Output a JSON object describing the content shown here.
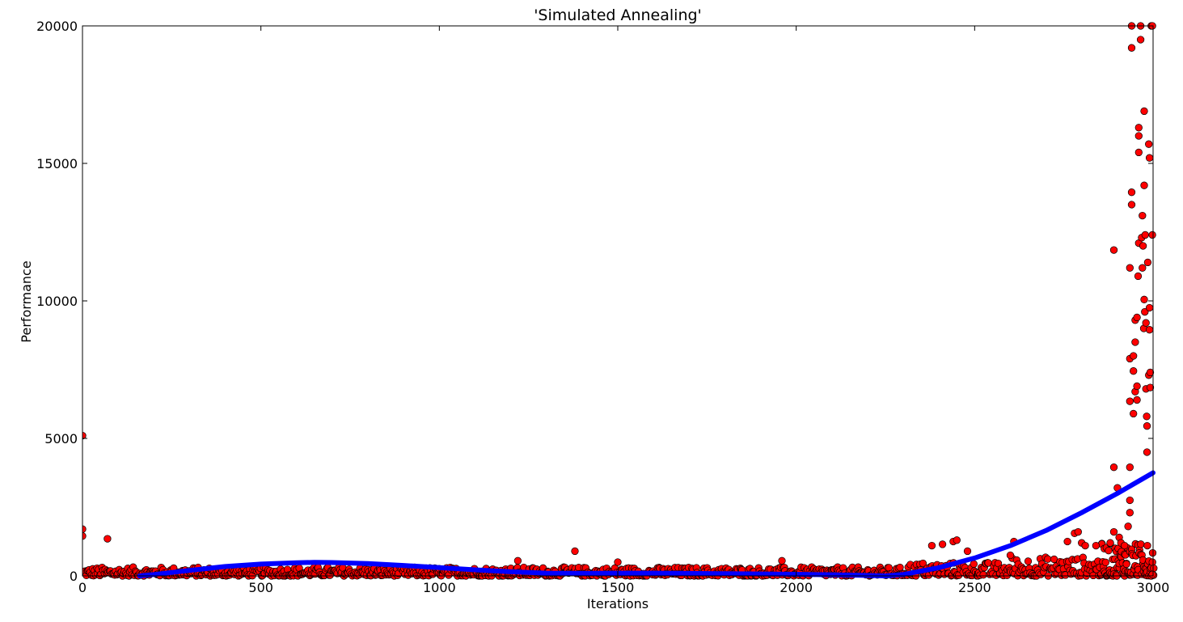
{
  "chart_data": {
    "type": "scatter",
    "title": "'Simulated Annealing'",
    "xlabel": "Iterations",
    "ylabel": "Performance",
    "xlim": [
      0,
      3000
    ],
    "ylim": [
      0,
      20000
    ],
    "xticks": [
      0,
      500,
      1000,
      1500,
      2000,
      2500,
      3000
    ],
    "yticks": [
      0,
      5000,
      10000,
      15000,
      20000
    ],
    "grid": false,
    "colors": {
      "points": "#ff0000",
      "point_edge": "#000000",
      "fit_line": "#0000ff"
    },
    "series": [
      {
        "kind": "scatter",
        "outliers": [
          [
            0,
            5100
          ],
          [
            0,
            1700
          ],
          [
            0,
            1450
          ],
          [
            70,
            1350
          ],
          [
            1380,
            900
          ],
          [
            1220,
            550
          ],
          [
            1500,
            500
          ],
          [
            1960,
            550
          ],
          [
            2380,
            1100
          ],
          [
            2410,
            1150
          ],
          [
            2440,
            1250
          ],
          [
            2450,
            1300
          ],
          [
            2480,
            900
          ],
          [
            2600,
            750
          ],
          [
            2610,
            1250
          ],
          [
            2760,
            1250
          ],
          [
            2780,
            1550
          ],
          [
            2790,
            1600
          ],
          [
            2800,
            1200
          ],
          [
            2810,
            1100
          ],
          [
            2840,
            1100
          ],
          [
            2880,
            1200
          ],
          [
            2890,
            1600
          ],
          [
            2890,
            3950
          ],
          [
            2890,
            11850
          ],
          [
            2900,
            3200
          ],
          [
            2905,
            1400
          ],
          [
            2910,
            1200
          ],
          [
            2920,
            1100
          ],
          [
            2930,
            1800
          ],
          [
            2935,
            2300
          ],
          [
            2935,
            2750
          ],
          [
            2935,
            3950
          ],
          [
            2935,
            6350
          ],
          [
            2935,
            7900
          ],
          [
            2935,
            11200
          ],
          [
            2940,
            13500
          ],
          [
            2940,
            13950
          ],
          [
            2940,
            19200
          ],
          [
            2940,
            20000
          ],
          [
            2945,
            8000
          ],
          [
            2945,
            7450
          ],
          [
            2945,
            5900
          ],
          [
            2950,
            8500
          ],
          [
            2950,
            9300
          ],
          [
            2950,
            6700
          ],
          [
            2955,
            9400
          ],
          [
            2955,
            6400
          ],
          [
            2955,
            6900
          ],
          [
            2958,
            10900
          ],
          [
            2960,
            12100
          ],
          [
            2960,
            16000
          ],
          [
            2960,
            16300
          ],
          [
            2960,
            15400
          ],
          [
            2965,
            19500
          ],
          [
            2965,
            20000
          ],
          [
            2968,
            12300
          ],
          [
            2970,
            13100
          ],
          [
            2970,
            11200
          ],
          [
            2972,
            12000
          ],
          [
            2974,
            9000
          ],
          [
            2975,
            16900
          ],
          [
            2975,
            14200
          ],
          [
            2975,
            10050
          ],
          [
            2977,
            9600
          ],
          [
            2978,
            12400
          ],
          [
            2980,
            9200
          ],
          [
            2980,
            6800
          ],
          [
            2982,
            5800
          ],
          [
            2983,
            5450
          ],
          [
            2983,
            4500
          ],
          [
            2984,
            1100
          ],
          [
            2985,
            11400
          ],
          [
            2988,
            15700
          ],
          [
            2988,
            7300
          ],
          [
            2990,
            15200
          ],
          [
            2990,
            9750
          ],
          [
            2990,
            8950
          ],
          [
            2992,
            7400
          ],
          [
            2992,
            6850
          ],
          [
            2995,
            20000
          ],
          [
            2998,
            20000
          ],
          [
            2998,
            12400
          ],
          [
            2998,
            50
          ]
        ]
      },
      {
        "kind": "line",
        "fit_points": [
          [
            160,
            0
          ],
          [
            200,
            50
          ],
          [
            300,
            200
          ],
          [
            400,
            340
          ],
          [
            500,
            430
          ],
          [
            600,
            480
          ],
          [
            650,
            490
          ],
          [
            700,
            485
          ],
          [
            800,
            450
          ],
          [
            900,
            380
          ],
          [
            1000,
            300
          ],
          [
            1100,
            220
          ],
          [
            1200,
            150
          ],
          [
            1300,
            100
          ],
          [
            1400,
            90
          ],
          [
            1500,
            100
          ],
          [
            1600,
            100
          ],
          [
            1700,
            90
          ],
          [
            1800,
            80
          ],
          [
            1900,
            70
          ],
          [
            2000,
            60
          ],
          [
            2100,
            40
          ],
          [
            2180,
            20
          ],
          [
            2250,
            0
          ],
          [
            2300,
            50
          ],
          [
            2400,
            300
          ],
          [
            2500,
            650
          ],
          [
            2600,
            1100
          ],
          [
            2700,
            1650
          ],
          [
            2800,
            2300
          ],
          [
            2900,
            3000
          ],
          [
            3000,
            3750
          ]
        ]
      }
    ]
  }
}
